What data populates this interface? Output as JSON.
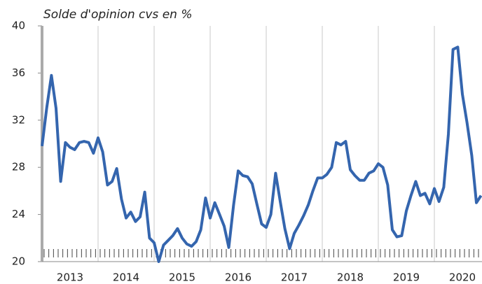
{
  "chart_data": {
    "type": "line",
    "title": "Solde d'opinion cvs en %",
    "x": [
      2013,
      2013.083,
      2013.167,
      2013.25,
      2013.333,
      2013.417,
      2013.5,
      2013.583,
      2013.667,
      2013.75,
      2013.833,
      2013.917,
      2014,
      2014.083,
      2014.167,
      2014.25,
      2014.333,
      2014.417,
      2014.5,
      2014.583,
      2014.667,
      2014.75,
      2014.833,
      2014.917,
      2015,
      2015.083,
      2015.167,
      2015.25,
      2015.333,
      2015.417,
      2015.5,
      2015.583,
      2015.667,
      2015.75,
      2015.833,
      2015.917,
      2016,
      2016.083,
      2016.167,
      2016.25,
      2016.333,
      2016.417,
      2016.5,
      2016.583,
      2016.667,
      2016.75,
      2016.833,
      2016.917,
      2017,
      2017.083,
      2017.167,
      2017.25,
      2017.333,
      2017.417,
      2017.5,
      2017.583,
      2017.667,
      2017.75,
      2017.833,
      2017.917,
      2018,
      2018.083,
      2018.167,
      2018.25,
      2018.333,
      2018.417,
      2018.5,
      2018.583,
      2018.667,
      2018.75,
      2018.833,
      2018.917,
      2019,
      2019.083,
      2019.167,
      2019.25,
      2019.333,
      2019.417,
      2019.5,
      2019.583,
      2019.667,
      2019.75,
      2019.833,
      2019.917,
      2020,
      2020.083,
      2020.167,
      2020.25,
      2020.333,
      2020.417,
      2020.5,
      2020.583,
      2020.667,
      2020.75,
      2020.833
    ],
    "series": [
      {
        "color": "#3465ae",
        "values": [
          29.8,
          33,
          35.8,
          33,
          26.8,
          30.1,
          29.7,
          29.5,
          30.1,
          30.2,
          30.1,
          29.2,
          30.5,
          29.3,
          26.5,
          26.8,
          27.9,
          25.3,
          23.7,
          24.2,
          23.4,
          23.8,
          25.9,
          22.0,
          21.6,
          20.0,
          21.4,
          21.8,
          22.2,
          22.8,
          22.0,
          21.5,
          21.3,
          21.7,
          22.7,
          25.4,
          23.7,
          25.0,
          24.0,
          23.0,
          21.2,
          24.8,
          27.7,
          27.3,
          27.2,
          26.6,
          24.9,
          23.2,
          22.9,
          24.0,
          27.5,
          25.1,
          22.8,
          21.1,
          22.4,
          23.1,
          23.9,
          24.8,
          26.0,
          27.1,
          27.1,
          27.4,
          28.0,
          30.1,
          29.9,
          30.2,
          27.8,
          27.3,
          26.9,
          26.9,
          27.5,
          27.7,
          28.3,
          28.0,
          26.5,
          22.7,
          22.1,
          22.2,
          24.3,
          25.6,
          26.8,
          25.6,
          25.8,
          24.9,
          26.2,
          25.1,
          26.3,
          30.8,
          38.0,
          38.2,
          34.2,
          31.8,
          29.0,
          25.0,
          25.6
        ]
      }
    ],
    "xlim": [
      2013,
      2020.85
    ],
    "xticks": [
      2013,
      2014,
      2015,
      2016,
      2017,
      2018,
      2019,
      2020
    ],
    "ylim": [
      20,
      40
    ],
    "yticks": [
      20,
      24,
      28,
      32,
      36,
      40
    ],
    "grid": "x"
  }
}
